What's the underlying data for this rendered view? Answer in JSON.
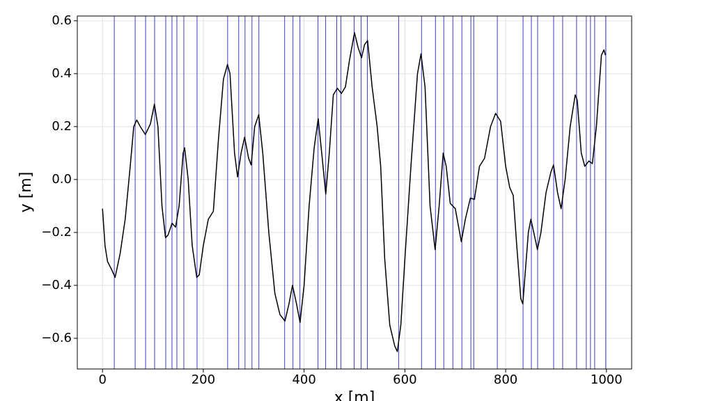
{
  "chart_data": {
    "type": "line",
    "xlabel": "x [m]",
    "ylabel": "y [m]",
    "xlim": [
      -50,
      1050
    ],
    "ylim": [
      -0.716,
      0.618
    ],
    "xticks": [
      0,
      200,
      400,
      600,
      800,
      1000
    ],
    "yticks": [
      {
        "value": -0.6,
        "label": "−0.6"
      },
      {
        "value": -0.4,
        "label": "−0.4"
      },
      {
        "value": -0.2,
        "label": "−0.2"
      },
      {
        "value": 0,
        "label": "0.0"
      },
      0.2,
      0.4,
      0.6
    ],
    "grid": true,
    "vlines": {
      "color": "#3c3cc8",
      "x": [
        23.4,
        64.8,
        85.5,
        103.4,
        125.5,
        137.9,
        147.6,
        161.4,
        187.6,
        248.3,
        270.3,
        282.8,
        296.6,
        310.3,
        361.4,
        377.9,
        391.7,
        427.6,
        442.8,
        464.8,
        473.1,
        499.3,
        513.1,
        525.5,
        587.6,
        633.1,
        660.7,
        677.2,
        695.2,
        713.1,
        731,
        736.6,
        783.4,
        834.5,
        851,
        863.4,
        895.2,
        913.1,
        940.7,
        960,
        968.3,
        976.6,
        998.6
      ]
    },
    "series": [
      {
        "color": "#000000",
        "x": [
          0,
          5,
          10,
          18,
          25,
          35,
          45,
          55,
          62,
          68,
          75,
          85,
          95,
          103,
          110,
          118,
          125,
          130,
          138,
          145,
          152,
          160,
          163,
          170,
          178,
          187,
          192,
          200,
          210,
          220,
          230,
          240,
          248,
          253,
          262,
          268,
          275,
          282,
          290,
          295,
          302,
          310,
          318,
          330,
          342,
          352,
          362,
          370,
          377,
          385,
          392,
          400,
          410,
          420,
          428,
          435,
          443,
          450,
          458,
          466,
          474,
          482,
          490,
          500,
          507,
          514,
          520,
          526,
          535,
          545,
          552,
          560,
          570,
          580,
          585,
          592,
          600,
          612,
          625,
          632,
          640,
          650,
          660,
          668,
          676,
          682,
          690,
          700,
          712,
          720,
          730,
          738,
          748,
          758,
          770,
          780,
          790,
          800,
          808,
          815,
          822,
          830,
          834,
          845,
          850,
          858,
          863,
          870,
          880,
          890,
          895,
          903,
          910,
          918,
          928,
          938,
          942,
          950,
          957,
          965,
          972,
          980,
          990,
          995,
          998
        ],
        "values": [
          -0.11,
          -0.25,
          -0.31,
          -0.34,
          -0.37,
          -0.28,
          -0.15,
          0.05,
          0.2,
          0.225,
          0.2,
          0.17,
          0.21,
          0.285,
          0.2,
          -0.1,
          -0.22,
          -0.21,
          -0.165,
          -0.18,
          -0.1,
          0.1,
          0.12,
          0.0,
          -0.25,
          -0.37,
          -0.36,
          -0.25,
          -0.15,
          -0.12,
          0.15,
          0.38,
          0.435,
          0.4,
          0.1,
          0.01,
          0.1,
          0.16,
          0.08,
          0.055,
          0.2,
          0.245,
          0.1,
          -0.2,
          -0.43,
          -0.51,
          -0.535,
          -0.47,
          -0.4,
          -0.47,
          -0.54,
          -0.4,
          -0.1,
          0.12,
          0.23,
          0.1,
          -0.055,
          0.1,
          0.32,
          0.345,
          0.325,
          0.35,
          0.45,
          0.555,
          0.5,
          0.46,
          0.51,
          0.525,
          0.35,
          0.2,
          0.05,
          -0.3,
          -0.55,
          -0.63,
          -0.65,
          -0.55,
          -0.3,
          0.05,
          0.4,
          0.475,
          0.35,
          -0.1,
          -0.265,
          -0.1,
          0.1,
          0.05,
          -0.09,
          -0.11,
          -0.235,
          -0.15,
          -0.07,
          -0.075,
          0.05,
          0.08,
          0.2,
          0.25,
          0.22,
          0.05,
          -0.03,
          -0.06,
          -0.25,
          -0.45,
          -0.47,
          -0.2,
          -0.15,
          -0.22,
          -0.265,
          -0.2,
          -0.05,
          0.03,
          0.055,
          -0.05,
          -0.11,
          0.0,
          0.2,
          0.32,
          0.3,
          0.1,
          0.05,
          0.07,
          0.06,
          0.2,
          0.47,
          0.49,
          0.47
        ]
      }
    ]
  }
}
